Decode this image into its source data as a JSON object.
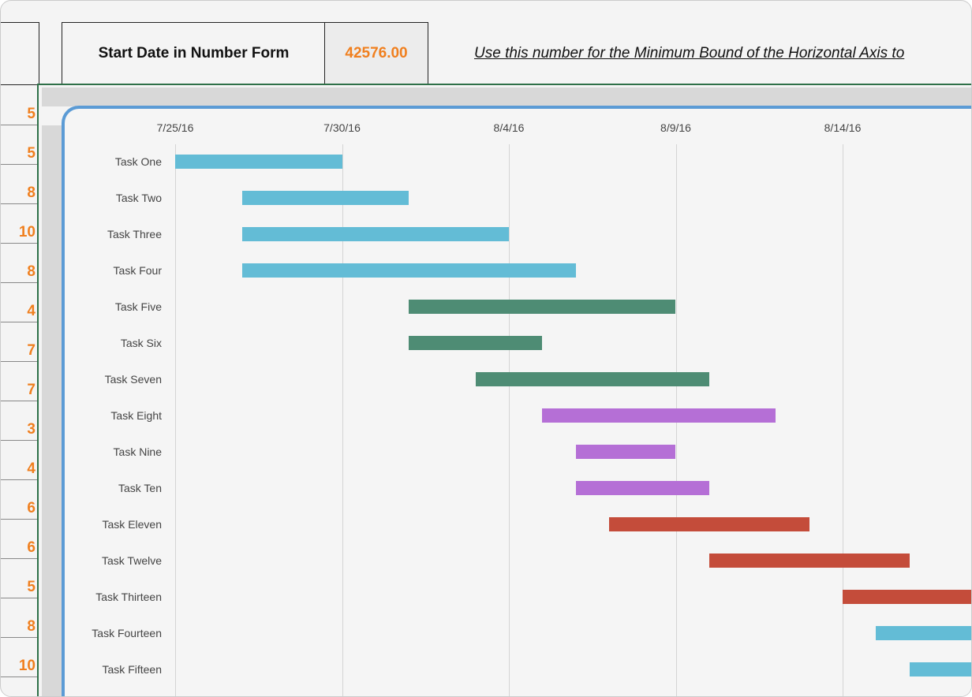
{
  "header": {
    "start_date_label": "Start Date in Number Form",
    "start_date_value": "42576.00",
    "note": "Use this number for the Minimum Bound of the Horizontal Axis to"
  },
  "duration_column": [
    "5",
    "5",
    "8",
    "10",
    "8",
    "4",
    "7",
    "7",
    "3",
    "4",
    "6",
    "6",
    "5",
    "8",
    "10"
  ],
  "colors": {
    "accent_orange": "#f07f1e",
    "frame_green": "#2e7048",
    "chart_border_blue": "#5b9bd5"
  },
  "chart_data": {
    "type": "bar",
    "subtype": "gantt (horizontal stacked, invisible start series)",
    "x_ticks": [
      "7/25/16",
      "7/30/16",
      "8/4/16",
      "8/9/16",
      "8/14/16"
    ],
    "x_min": "2016-07-25",
    "grid": "vertical",
    "categories": [
      "Task One",
      "Task Two",
      "Task Three",
      "Task Four",
      "Task Five",
      "Task Six",
      "Task Seven",
      "Task Eight",
      "Task Nine",
      "Task Ten",
      "Task Eleven",
      "Task Twelve",
      "Task Thirteen",
      "Task Fourteen",
      "Task Fifteen"
    ],
    "start_dates": [
      "2016-07-25",
      "2016-07-27",
      "2016-07-27",
      "2016-07-27",
      "2016-08-01",
      "2016-08-01",
      "2016-08-03",
      "2016-08-05",
      "2016-08-06",
      "2016-08-06",
      "2016-08-07",
      "2016-08-10",
      "2016-08-14",
      "2016-08-15",
      "2016-08-16"
    ],
    "durations_days": [
      5,
      5,
      8,
      10,
      8,
      4,
      7,
      7,
      3,
      4,
      6,
      6,
      5,
      8,
      10
    ],
    "bar_colors": [
      "#63bcd6",
      "#63bcd6",
      "#63bcd6",
      "#63bcd6",
      "#4e8c74",
      "#4e8c74",
      "#4e8c74",
      "#b56fd6",
      "#b56fd6",
      "#b56fd6",
      "#c44c3a",
      "#c44c3a",
      "#c44c3a",
      "#63bcd6",
      "#63bcd6"
    ]
  }
}
